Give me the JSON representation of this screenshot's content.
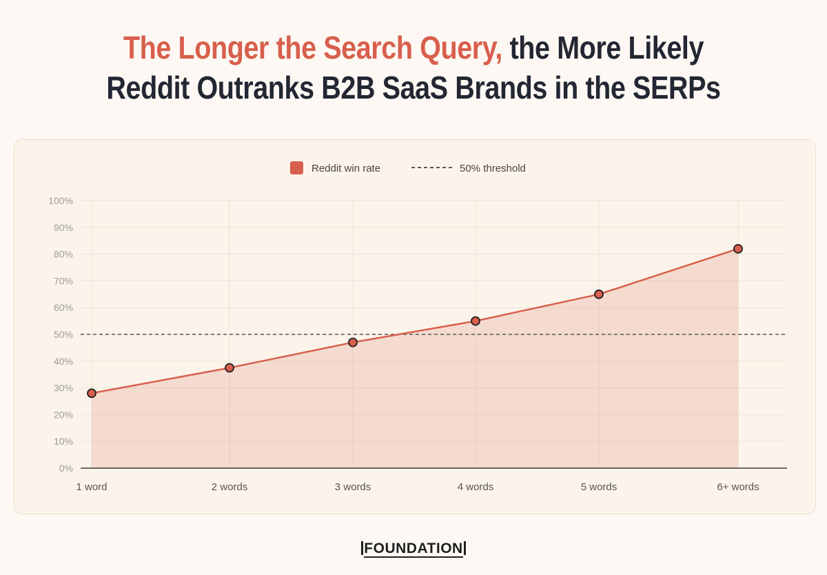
{
  "header": {
    "title_accent": "The Longer the Search Query,",
    "title_rest": " the More Likely",
    "title_line2": "Reddit Outranks B2B SaaS Brands in the SERPs"
  },
  "chart_data": {
    "type": "line",
    "categories": [
      "1 word",
      "2 words",
      "3 words",
      "4 words",
      "5 words",
      "6+ words"
    ],
    "series": [
      {
        "name": "Reddit win rate",
        "values": [
          28,
          37.5,
          47,
          55,
          65,
          82
        ],
        "color": "#d85f4d",
        "fill": "area"
      }
    ],
    "threshold": {
      "name": "50% threshold",
      "value": 50,
      "style": "dashed",
      "color": "#555555"
    },
    "ylim": [
      0,
      100
    ],
    "yticks": [
      0,
      10,
      20,
      30,
      40,
      50,
      60,
      70,
      80,
      90,
      100
    ],
    "ytick_format": "percent",
    "legend_position": "top-center",
    "grid": true
  },
  "footer": {
    "brand": "FOUNDATION"
  }
}
